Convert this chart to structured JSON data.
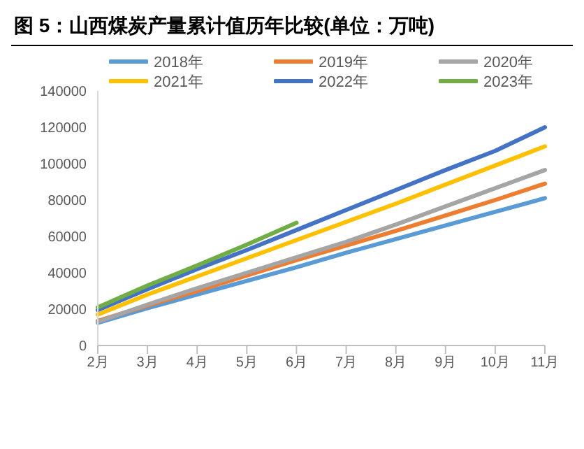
{
  "chart_data": {
    "type": "line",
    "title": "图 5：山西煤炭产量累计值历年比较(单位：万吨)",
    "categories": [
      "2月",
      "3月",
      "4月",
      "5月",
      "6月",
      "7月",
      "8月",
      "9月",
      "10月",
      "11月"
    ],
    "series": [
      {
        "name": "2018年",
        "color": "#5b9bd5",
        "values": [
          12500,
          20500,
          28000,
          35500,
          43000,
          51000,
          58500,
          66000,
          73500,
          81000
        ]
      },
      {
        "name": "2019年",
        "color": "#ed7d31",
        "values": [
          13500,
          22000,
          30000,
          38500,
          47000,
          55000,
          63000,
          71500,
          80000,
          89000
        ]
      },
      {
        "name": "2020年",
        "color": "#a5a5a5",
        "values": [
          13000,
          22500,
          31500,
          40000,
          48500,
          57000,
          66500,
          76500,
          86500,
          96500
        ]
      },
      {
        "name": "2021年",
        "color": "#ffc000",
        "values": [
          17000,
          28000,
          38000,
          48000,
          58000,
          68000,
          78000,
          88500,
          99000,
          109500
        ]
      },
      {
        "name": "2022年",
        "color": "#4472c4",
        "values": [
          19500,
          31000,
          42000,
          52500,
          63500,
          74500,
          85500,
          96500,
          107000,
          120000
        ]
      },
      {
        "name": "2023年",
        "color": "#70ad47",
        "values": [
          21000,
          33000,
          44000,
          55500,
          67500,
          null,
          null,
          null,
          null,
          null
        ]
      }
    ],
    "ylim": [
      0,
      140000
    ],
    "yticks": [
      0,
      20000,
      40000,
      60000,
      80000,
      100000,
      120000,
      140000
    ],
    "grid": false,
    "legend": "top",
    "marker": "none",
    "line_style": "solid"
  }
}
